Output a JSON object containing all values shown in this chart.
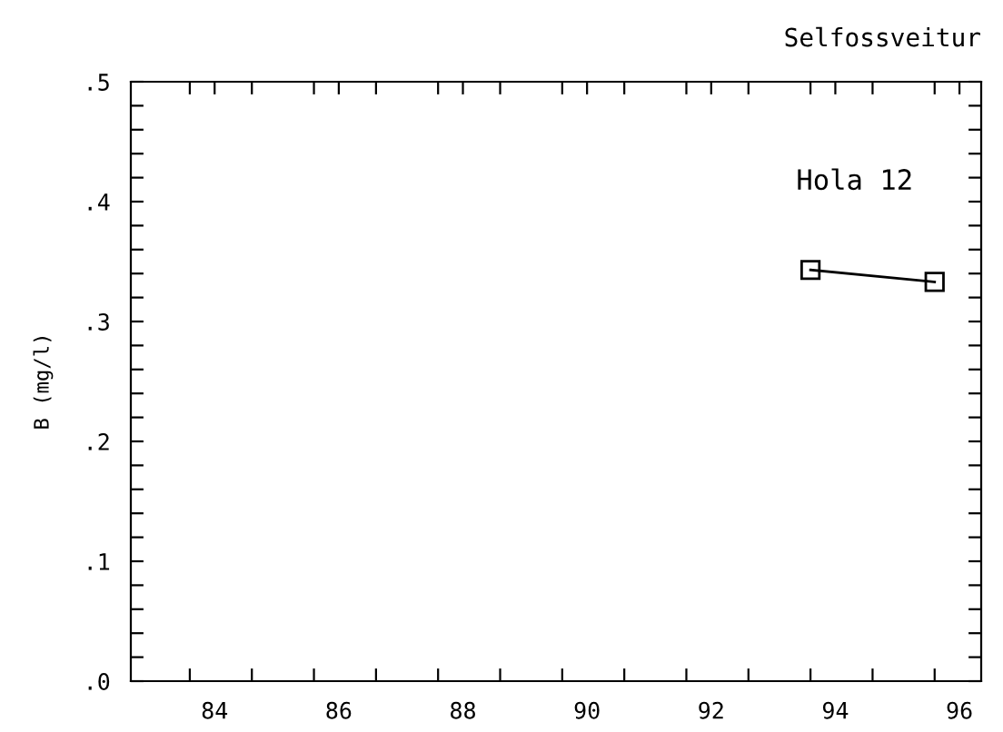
{
  "chart_data": {
    "type": "line",
    "title": "Selfossveitur",
    "ylabel": "B (mg/l)",
    "annotations": [
      "Hola 12"
    ],
    "x": [
      93.6,
      95.6
    ],
    "series": [
      {
        "color": "#000000",
        "values": [
          0.343,
          0.333
        ]
      }
    ],
    "marker": "square",
    "line_style": "solid",
    "grid": false,
    "xlim": [
      82.65,
      96.35
    ],
    "ylim": [
      0,
      0.5
    ],
    "xticks": [
      84,
      86,
      88,
      90,
      92,
      94,
      96,
      {
        "value": 83.6,
        "label": null
      },
      {
        "value": 84.6,
        "label": null
      },
      {
        "value": 85.6,
        "label": null
      },
      {
        "value": 86.6,
        "label": null
      },
      {
        "value": 87.6,
        "label": null
      },
      {
        "value": 88.6,
        "label": null
      },
      {
        "value": 89.6,
        "label": null
      },
      {
        "value": 90.6,
        "label": null
      },
      {
        "value": 91.6,
        "label": null
      },
      {
        "value": 92.6,
        "label": null
      },
      {
        "value": 93.6,
        "label": null
      },
      {
        "value": 94.6,
        "label": null
      },
      {
        "value": 95.6,
        "label": null
      }
    ],
    "yticks": [
      {
        "value": 0,
        "label": ".0"
      },
      {
        "value": 0.1,
        "label": ".1"
      },
      {
        "value": 0.2,
        "label": ".2"
      },
      {
        "value": 0.3,
        "label": ".3"
      },
      {
        "value": 0.4,
        "label": ".4"
      },
      {
        "value": 0.5,
        "label": ".5"
      },
      {
        "value": 0.02,
        "label": null
      },
      {
        "value": 0.04,
        "label": null
      },
      {
        "value": 0.06,
        "label": null
      },
      {
        "value": 0.08,
        "label": null
      },
      {
        "value": 0.12,
        "label": null
      },
      {
        "value": 0.14,
        "label": null
      },
      {
        "value": 0.16,
        "label": null
      },
      {
        "value": 0.18,
        "label": null
      },
      {
        "value": 0.22,
        "label": null
      },
      {
        "value": 0.24,
        "label": null
      },
      {
        "value": 0.26,
        "label": null
      },
      {
        "value": 0.28,
        "label": null
      },
      {
        "value": 0.32,
        "label": null
      },
      {
        "value": 0.34,
        "label": null
      },
      {
        "value": 0.36,
        "label": null
      },
      {
        "value": 0.38,
        "label": null
      },
      {
        "value": 0.42,
        "label": null
      },
      {
        "value": 0.44,
        "label": null
      },
      {
        "value": 0.46,
        "label": null
      },
      {
        "value": 0.48,
        "label": null
      }
    ]
  }
}
